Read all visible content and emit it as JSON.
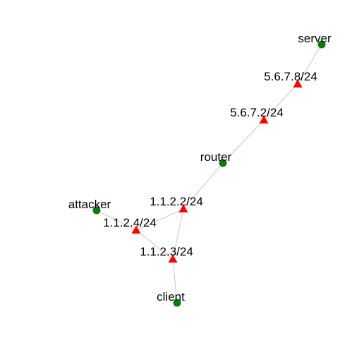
{
  "colors": {
    "host": "#0b7a12",
    "interface": "#ff0000",
    "edge": "#c8c8c8",
    "text": "#000000"
  },
  "nodes": [
    {
      "id": "server",
      "label": "server",
      "kind": "host"
    },
    {
      "id": "if-5678",
      "label": "5.6.7.8/24",
      "kind": "interface"
    },
    {
      "id": "if-5672",
      "label": "5.6.7.2/24",
      "kind": "interface"
    },
    {
      "id": "router",
      "label": "router",
      "kind": "host"
    },
    {
      "id": "if-1122",
      "label": "1.1.2.2/24",
      "kind": "interface"
    },
    {
      "id": "attacker",
      "label": "attacker",
      "kind": "host"
    },
    {
      "id": "if-1124",
      "label": "1.1.2.4/24",
      "kind": "interface"
    },
    {
      "id": "if-1123",
      "label": "1.1.2.3/24",
      "kind": "interface"
    },
    {
      "id": "client",
      "label": "client",
      "kind": "host"
    }
  ],
  "edges": [
    [
      "server",
      "if-5678"
    ],
    [
      "if-5678",
      "if-5672"
    ],
    [
      "if-5672",
      "router"
    ],
    [
      "router",
      "if-1122"
    ],
    [
      "if-1122",
      "if-1124"
    ],
    [
      "if-1122",
      "if-1123"
    ],
    [
      "if-1124",
      "if-1123"
    ],
    [
      "attacker",
      "if-1124"
    ],
    [
      "if-1123",
      "client"
    ]
  ]
}
